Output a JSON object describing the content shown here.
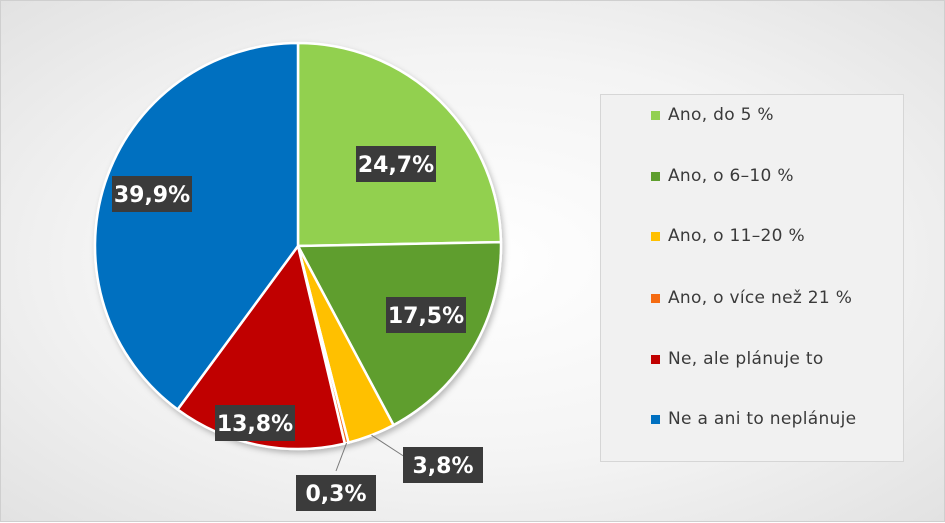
{
  "chart_data": {
    "type": "pie",
    "start_angle_deg": 0,
    "direction": "clockwise",
    "slices": [
      {
        "label": "Ano, do 5 %",
        "value": 24.7,
        "display": "24,7%",
        "color": "#92D050"
      },
      {
        "label": "Ano, o 6–10 %",
        "value": 17.5,
        "display": "17,5%",
        "color": "#5E9E2E"
      },
      {
        "label": "Ano, o 11–20 %",
        "value": 3.8,
        "display": "3,8%",
        "color": "#FFC000"
      },
      {
        "label": "Ano, o více než 21 %",
        "value": 0.3,
        "display": "0,3%",
        "color": "#F56B12"
      },
      {
        "label": "Ne, ale plánuje to",
        "value": 13.8,
        "display": "13,8%",
        "color": "#C00000"
      },
      {
        "label": "Ne a ani to neplánuje",
        "value": 39.9,
        "display": "39,9%",
        "color": "#0070C0"
      }
    ],
    "legend_position": "right"
  }
}
